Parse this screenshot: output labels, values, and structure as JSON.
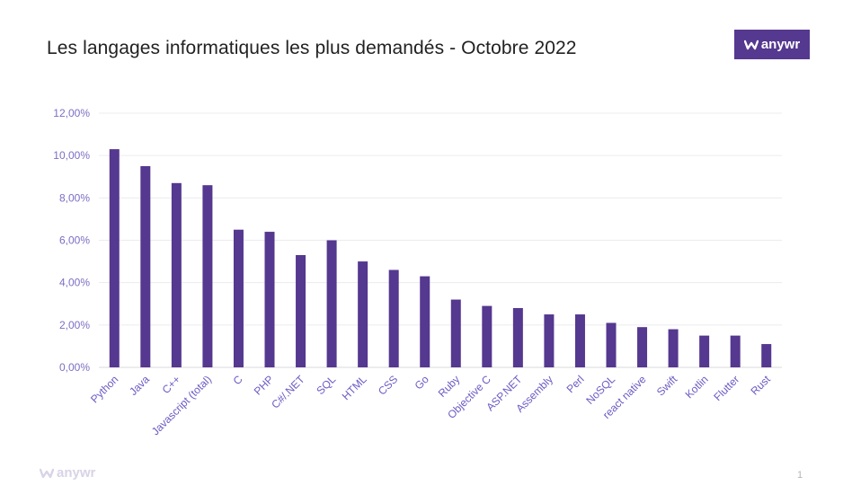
{
  "slide": {
    "title": "Les langages informatiques les plus demandés - Octobre 2022",
    "brand": "anywr",
    "brand_color": "#55388f",
    "page_number": "1"
  },
  "chart_data": {
    "type": "bar",
    "title": "",
    "xlabel": "",
    "ylabel": "",
    "ylim": [
      0,
      12
    ],
    "yticks": [
      "0,00%",
      "2,00%",
      "4,00%",
      "6,00%",
      "8,00%",
      "10,00%",
      "12,00%"
    ],
    "grid": true,
    "bar_color": "#55388f",
    "categories": [
      "Python",
      "Java",
      "C++",
      "Javascript (total)",
      "C",
      "PHP",
      "C#/.NET",
      "SQL",
      "HTML",
      "CSS",
      "Go",
      "Ruby",
      "Objective C",
      "ASP.NET",
      "Assembly",
      "Perl",
      "NoSQL",
      "react native",
      "Swift",
      "Kotlin",
      "Flutter",
      "Rust"
    ],
    "values": [
      10.3,
      9.5,
      8.7,
      8.6,
      6.5,
      6.4,
      5.3,
      6.0,
      5.0,
      4.6,
      4.3,
      3.2,
      2.9,
      2.8,
      2.5,
      2.5,
      2.1,
      1.9,
      1.8,
      1.5,
      1.5,
      1.1
    ]
  }
}
